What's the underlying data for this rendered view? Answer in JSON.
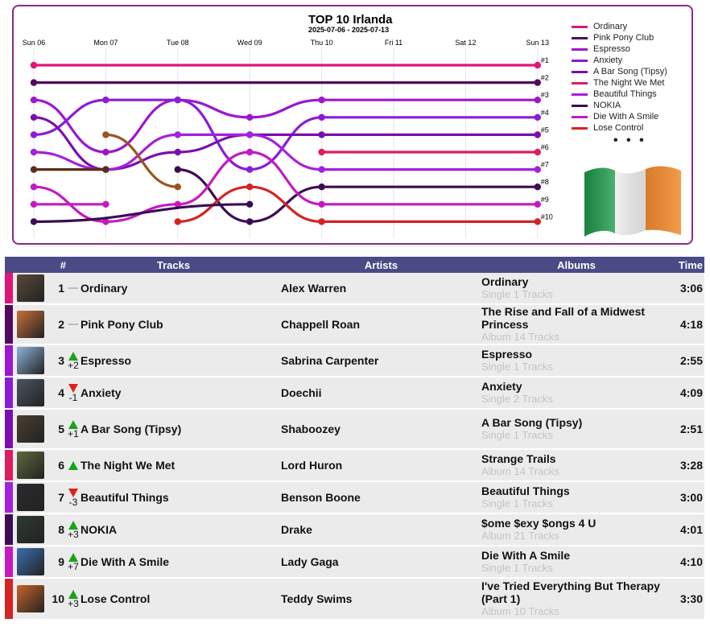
{
  "chart": {
    "title": "TOP 10 Irlanda",
    "subtitle": "2025-07-06 - 2025-07-13",
    "legend_more": "• • •"
  },
  "chart_data": {
    "type": "line",
    "x": [
      "Sun 06",
      "Mon 07",
      "Tue 08",
      "Wed 09",
      "Thu 10",
      "Fri 11",
      "Sat 12",
      "Sun 13"
    ],
    "y_ticks": [
      "#1",
      "#2",
      "#3",
      "#4",
      "#5",
      "#6",
      "#7",
      "#8",
      "#9",
      "#10"
    ],
    "y_inverted": true,
    "ylim": [
      1,
      10
    ],
    "series": [
      {
        "name": "Ordinary",
        "color": "#e0157a",
        "ranks": [
          1,
          null,
          null,
          null,
          null,
          null,
          null,
          1
        ]
      },
      {
        "name": "Pink Pony Club",
        "color": "#520a5e",
        "ranks": [
          2,
          null,
          null,
          null,
          null,
          null,
          null,
          2
        ]
      },
      {
        "name": "Espresso",
        "color": "#9b17d0",
        "ranks": [
          3,
          6,
          3,
          4,
          3,
          null,
          null,
          3
        ]
      },
      {
        "name": "Anxiety",
        "color": "#8a1bd8",
        "ranks": [
          5,
          3,
          3,
          7,
          4,
          null,
          null,
          4
        ]
      },
      {
        "name": "A Bar Song (Tipsy)",
        "color": "#7a0fb0",
        "ranks": [
          4,
          7,
          6,
          5,
          5,
          null,
          null,
          5
        ]
      },
      {
        "name": "The Night We Met",
        "color": "#dd1d5f",
        "ranks": [
          null,
          null,
          null,
          null,
          6,
          null,
          null,
          6
        ]
      },
      {
        "name": "Beautiful Things",
        "color": "#a321dc",
        "ranks": [
          6,
          7,
          5,
          5,
          7,
          null,
          null,
          7
        ]
      },
      {
        "name": "NOKIA",
        "color": "#3d0c55",
        "ranks": [
          null,
          null,
          7,
          10,
          8,
          null,
          null,
          8
        ]
      },
      {
        "name": "Die With A Smile",
        "color": "#c41ac0",
        "ranks": [
          8,
          10,
          9,
          6,
          9,
          null,
          null,
          9
        ]
      },
      {
        "name": "Lose Control",
        "color": "#d42323",
        "ranks": [
          null,
          null,
          10,
          8,
          10,
          null,
          null,
          10
        ]
      },
      {
        "name": "",
        "color": "#5a2e14",
        "ranks": [
          7,
          7,
          null,
          null,
          null,
          null,
          null,
          null
        ]
      },
      {
        "name": "",
        "color": "#9a5522",
        "ranks": [
          null,
          5,
          8,
          null,
          null,
          null,
          null,
          null
        ]
      },
      {
        "name": "",
        "color": "#c41ac0",
        "ranks": [
          9,
          9,
          null,
          null,
          null,
          null,
          null,
          null
        ]
      },
      {
        "name": "",
        "color": "#3d0c55",
        "ranks": [
          10,
          null,
          null,
          9,
          null,
          null,
          null,
          null
        ]
      }
    ]
  },
  "table": {
    "headers": {
      "rank": "#",
      "tracks": "Tracks",
      "artists": "Artists",
      "albums": "Albums",
      "time": "Time"
    },
    "rows": [
      {
        "rank": "1",
        "change_dir": "same",
        "change": "",
        "track": "Ordinary",
        "artist": "Alex Warren",
        "album": "Ordinary",
        "album_sub": "Single 1 Tracks",
        "time": "3:06",
        "color": "#e0157a",
        "cover": "#5a4a3a"
      },
      {
        "rank": "2",
        "change_dir": "same",
        "change": "",
        "track": "Pink Pony Club",
        "artist": "Chappell Roan",
        "album": "The Rise and Fall of a Midwest Princess",
        "album_sub": "Album 14 Tracks",
        "time": "4:18",
        "color": "#520a5e",
        "cover": "#c9703a"
      },
      {
        "rank": "3",
        "change_dir": "up",
        "change": "+2",
        "track": "Espresso",
        "artist": "Sabrina Carpenter",
        "album": "Espresso",
        "album_sub": "Single 1 Tracks",
        "time": "2:55",
        "color": "#9b17d0",
        "cover": "#8db3d8"
      },
      {
        "rank": "4",
        "change_dir": "down",
        "change": "-1",
        "track": "Anxiety",
        "artist": "Doechii",
        "album": "Anxiety",
        "album_sub": "Single 2 Tracks",
        "time": "4:09",
        "color": "#8a1bd8",
        "cover": "#4d5663"
      },
      {
        "rank": "5",
        "change_dir": "up",
        "change": "+1",
        "track": "A Bar Song (Tipsy)",
        "artist": "Shaboozey",
        "album": "A Bar Song (Tipsy)",
        "album_sub": "Single 1 Tracks",
        "time": "2:51",
        "color": "#7a0fb0",
        "cover": "#4a3f32"
      },
      {
        "rank": "6",
        "change_dir": "up",
        "change": "",
        "track": "The Night We Met",
        "artist": "Lord Huron",
        "album": "Strange Trails",
        "album_sub": "Album 14 Tracks",
        "time": "3:28",
        "color": "#dd1d5f",
        "cover": "#5d6a3a"
      },
      {
        "rank": "7",
        "change_dir": "down",
        "change": "-3",
        "track": "Beautiful Things",
        "artist": "Benson Boone",
        "album": "Beautiful Things",
        "album_sub": "Single 1 Tracks",
        "time": "3:00",
        "color": "#a321dc",
        "cover": "#2c2c30"
      },
      {
        "rank": "8",
        "change_dir": "up",
        "change": "+3",
        "track": "NOKIA",
        "artist": "Drake",
        "album": "$ome $exy $ongs 4 U",
        "album_sub": "Album 21 Tracks",
        "time": "4:01",
        "color": "#3d0c55",
        "cover": "#2e3a2e"
      },
      {
        "rank": "9",
        "change_dir": "up",
        "change": "+7",
        "track": "Die With A Smile",
        "artist": "Lady Gaga",
        "album": "Die With A Smile",
        "album_sub": "Single 1 Tracks",
        "time": "4:10",
        "color": "#c41ac0",
        "cover": "#3a6fb0"
      },
      {
        "rank": "10",
        "change_dir": "up",
        "change": "+3",
        "track": "Lose Control",
        "artist": "Teddy Swims",
        "album": "I've Tried Everything But Therapy (Part 1)",
        "album_sub": "Album 10 Tracks",
        "time": "3:30",
        "color": "#d42323",
        "cover": "#c8642a"
      }
    ]
  }
}
